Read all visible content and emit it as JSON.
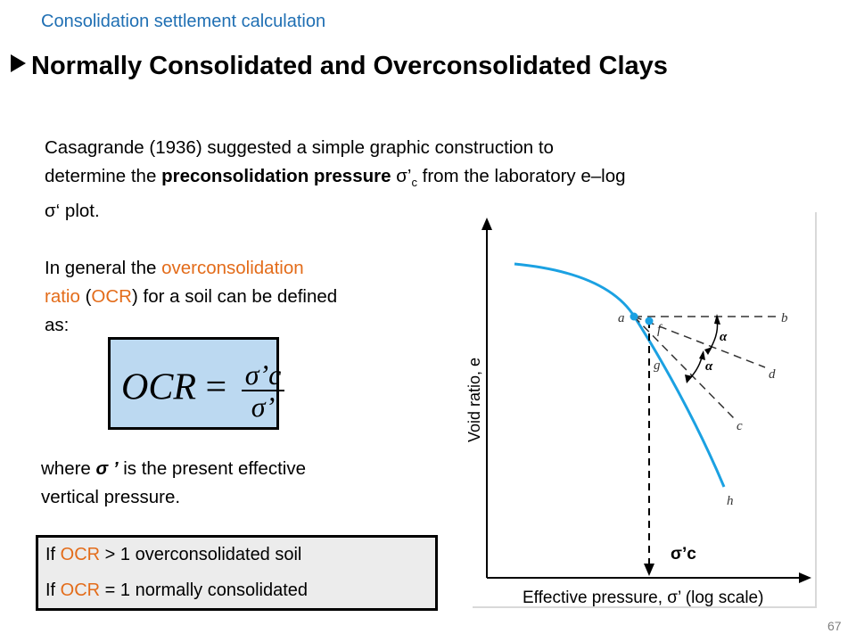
{
  "header": {
    "subtitle": "Consolidation settlement calculation",
    "title": "Normally Consolidated and Overconsolidated Clays"
  },
  "intro": {
    "line1": "Casagrande (1936) suggested a simple graphic construction to",
    "line2_a": "determine the ",
    "line2_bold": "preconsolidation pressure ",
    "line2_sym": "σ’",
    "line2_sub": "c",
    "line2_b": " from the laboratory e–log",
    "line3_sym": "σ‘",
    "line3": " plot."
  },
  "ocr_def": {
    "pre": "In general the ",
    "term1": "overconsolidation",
    "term2": "ratio",
    "open": " (",
    "abbr": "OCR",
    "post1": ") for a soil can be defined",
    "post2": "as:"
  },
  "formula": {
    "lhs": "OCR",
    "eq": " = ",
    "num": "σ’c",
    "den": "σ’"
  },
  "where_note": {
    "pre": "where ",
    "sym": "σ ’",
    "post": " is the present effective",
    "line2": "vertical pressure."
  },
  "conditions": {
    "l1_pre": "If ",
    "l1_abbr": "OCR",
    "l1_post": " > 1 overconsolidated soil",
    "l2_pre": "If ",
    "l2_abbr": "OCR",
    "l2_post": " = 1 normally consolidated"
  },
  "chart": {
    "xlabel": "Effective pressure, σ’ (log scale)",
    "ylabel": "Void ratio, e",
    "sigc_label": "σ’c",
    "point_labels": {
      "a": "a",
      "b": "b",
      "c": "c",
      "d": "d",
      "f": "f",
      "g": "g",
      "h": "h",
      "alpha1": "α",
      "alpha2": "α"
    },
    "curve_color": "#1ba1e2"
  },
  "page_number": "67"
}
